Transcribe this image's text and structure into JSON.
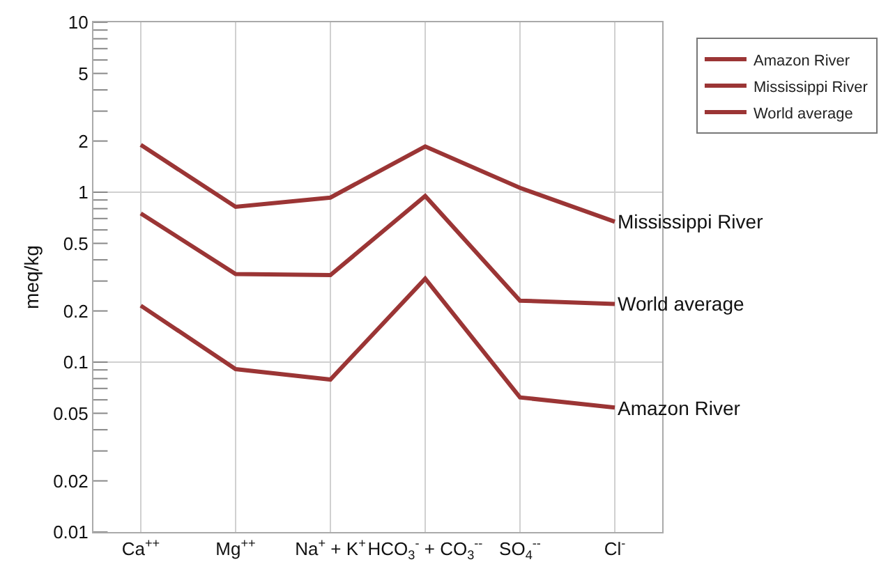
{
  "chart_data": {
    "type": "line",
    "ylabel": "meq/kg",
    "categories": [
      "Ca$^{++}$",
      "Mg$^{++}$",
      "Na$^{+}$ + K$^{+}$",
      "HCO$_{3}$$^{-}$ + CO$_{3}$$^{--}$",
      "SO$_{4}$$^{--}$",
      "Cl$^{-}$"
    ],
    "series": [
      {
        "name": "Amazon River",
        "color": "#9b3535",
        "values": [
          0.215,
          0.091,
          0.079,
          0.31,
          0.062,
          0.054
        ]
      },
      {
        "name": "Mississippi River",
        "color": "#9b3535",
        "values": [
          1.9,
          0.82,
          0.93,
          1.86,
          1.06,
          0.67
        ]
      },
      {
        "name": "World average",
        "color": "#9b3535",
        "values": [
          0.75,
          0.33,
          0.325,
          0.95,
          0.23,
          0.22
        ]
      }
    ],
    "log": true,
    "ylim": [
      0.01,
      10
    ],
    "yticks": [
      0.01,
      0.02,
      {
        "value": 0.03,
        "label": null
      },
      {
        "value": 0.04,
        "label": null
      },
      0.05,
      {
        "value": 0.06,
        "label": null
      },
      {
        "value": 0.07,
        "label": null
      },
      {
        "value": 0.08,
        "label": null
      },
      {
        "value": 0.09,
        "label": null
      },
      0.1,
      0.2,
      {
        "value": 0.3,
        "label": null
      },
      {
        "value": 0.4,
        "label": null
      },
      0.5,
      {
        "value": 0.6,
        "label": null
      },
      {
        "value": 0.7,
        "label": null
      },
      {
        "value": 0.8,
        "label": null
      },
      {
        "value": 0.9,
        "label": null
      },
      1,
      2,
      {
        "value": 3,
        "label": null
      },
      {
        "value": 4,
        "label": null
      },
      5,
      {
        "value": 6,
        "label": null
      },
      {
        "value": 7,
        "label": null
      },
      {
        "value": 8,
        "label": null
      },
      {
        "value": 9,
        "label": null
      },
      10
    ],
    "grid": true,
    "legend": "top right",
    "marker": "none",
    "line_style": "solid"
  }
}
